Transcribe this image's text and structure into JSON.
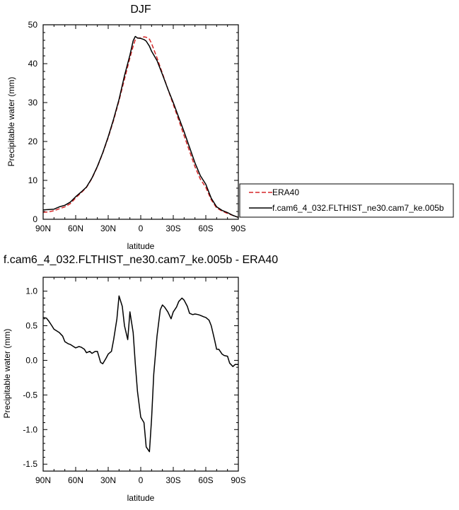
{
  "chart_data": [
    {
      "type": "line",
      "title": "DJF",
      "xlabel": "latitude",
      "ylabel": "Precipitable water (mm)",
      "xlim": [
        90,
        -90
      ],
      "ylim": [
        0,
        50
      ],
      "x_ticks": [
        {
          "value": 90,
          "label": "90N"
        },
        {
          "value": 60,
          "label": "60N"
        },
        {
          "value": 30,
          "label": "30N"
        },
        {
          "value": 0,
          "label": "0"
        },
        {
          "value": -30,
          "label": "30S"
        },
        {
          "value": -60,
          "label": "60S"
        },
        {
          "value": -90,
          "label": "90S"
        }
      ],
      "y_ticks": [
        {
          "value": 0,
          "label": "0"
        },
        {
          "value": 10,
          "label": "10"
        },
        {
          "value": 20,
          "label": "20"
        },
        {
          "value": 30,
          "label": "30"
        },
        {
          "value": 40,
          "label": "40"
        },
        {
          "value": 50,
          "label": "50"
        }
      ],
      "legend": "right",
      "grid": false,
      "series": [
        {
          "name": "ERA40",
          "color": "#d62728",
          "dash": "dashed",
          "x": [
            90,
            85,
            80,
            75,
            70,
            65,
            60,
            55,
            50,
            45,
            40,
            35,
            30,
            25,
            20,
            15,
            10,
            7,
            5,
            3,
            0,
            -3,
            -5,
            -8,
            -10,
            -15,
            -20,
            -25,
            -30,
            -35,
            -40,
            -45,
            -50,
            -55,
            -60,
            -65,
            -70,
            -75,
            -80,
            -85,
            -90
          ],
          "y": [
            1.8,
            1.9,
            2.2,
            2.7,
            3.2,
            4.0,
            5.5,
            6.8,
            8.2,
            10.5,
            13.5,
            17.0,
            21.0,
            25.5,
            30.5,
            36.0,
            41.5,
            44.5,
            46.2,
            46.6,
            46.6,
            46.9,
            46.8,
            46.3,
            45.2,
            41.5,
            37.5,
            33.5,
            29.5,
            25.5,
            21.5,
            17.5,
            13.5,
            10.3,
            8.2,
            5.0,
            2.9,
            2.1,
            1.5,
            1.0,
            0.5
          ]
        },
        {
          "name": "f.cam6_4_032.FLTHIST_ne30.cam7_ke.005b",
          "color": "#000000",
          "dash": "solid",
          "x": [
            90,
            85,
            80,
            75,
            70,
            65,
            60,
            55,
            50,
            45,
            40,
            35,
            30,
            25,
            20,
            15,
            10,
            7,
            5,
            3,
            0,
            -3,
            -5,
            -8,
            -10,
            -15,
            -20,
            -25,
            -30,
            -35,
            -40,
            -45,
            -50,
            -55,
            -60,
            -65,
            -70,
            -75,
            -80,
            -85,
            -90
          ],
          "y": [
            2.4,
            2.5,
            2.6,
            3.2,
            3.6,
            4.4,
            5.8,
            7.0,
            8.3,
            10.6,
            13.6,
            17.1,
            21.2,
            25.8,
            30.8,
            36.9,
            42.2,
            45.9,
            47.0,
            46.6,
            46.5,
            46.2,
            45.8,
            44.5,
            43.2,
            40.8,
            37.2,
            33.5,
            30.0,
            26.2,
            22.5,
            18.5,
            14.5,
            11.2,
            9.0,
            5.4,
            3.2,
            2.3,
            1.7,
            1.0,
            0.5
          ]
        }
      ]
    },
    {
      "type": "line",
      "title": "f.cam6_4_032.FLTHIST_ne30.cam7_ke.005b - ERA40",
      "xlabel": "latitude",
      "ylabel": "Precipitable water (mm)",
      "xlim": [
        90,
        -90
      ],
      "ylim": [
        -1.6,
        1.2
      ],
      "x_ticks": [
        {
          "value": 90,
          "label": "90N"
        },
        {
          "value": 60,
          "label": "60N"
        },
        {
          "value": 30,
          "label": "30N"
        },
        {
          "value": 0,
          "label": "0"
        },
        {
          "value": -30,
          "label": "30S"
        },
        {
          "value": -60,
          "label": "60S"
        },
        {
          "value": -90,
          "label": "90S"
        }
      ],
      "y_ticks": [
        {
          "value": 1.0,
          "label": "1.0"
        },
        {
          "value": 0.5,
          "label": "0.5"
        },
        {
          "value": 0.0,
          "label": "0.0"
        },
        {
          "value": -0.5,
          "label": "-0.5"
        },
        {
          "value": -1.0,
          "label": "-1.0"
        },
        {
          "value": -1.5,
          "label": "-1.5"
        }
      ],
      "grid": false,
      "series": [
        {
          "color": "#000000",
          "dash": "solid",
          "x": [
            90,
            87,
            85,
            82,
            80,
            77,
            75,
            72,
            70,
            67,
            65,
            62,
            60,
            57,
            55,
            52,
            50,
            47,
            45,
            42,
            40,
            37,
            35,
            32,
            30,
            27,
            25,
            22,
            20,
            17,
            15,
            12,
            10,
            7,
            5,
            3,
            0,
            -3,
            -5,
            -8,
            -10,
            -12,
            -15,
            -18,
            -20,
            -22,
            -25,
            -28,
            -30,
            -33,
            -35,
            -38,
            -40,
            -43,
            -45,
            -48,
            -50,
            -53,
            -55,
            -58,
            -60,
            -63,
            -65,
            -68,
            -70,
            -72,
            -75,
            -77,
            -80,
            -82,
            -85,
            -87,
            -90
          ],
          "y": [
            0.62,
            0.61,
            0.57,
            0.5,
            0.45,
            0.42,
            0.4,
            0.35,
            0.27,
            0.24,
            0.23,
            0.2,
            0.18,
            0.2,
            0.19,
            0.16,
            0.11,
            0.13,
            0.1,
            0.13,
            0.13,
            -0.03,
            -0.05,
            0.03,
            0.09,
            0.13,
            0.3,
            0.6,
            0.93,
            0.78,
            0.5,
            0.3,
            0.7,
            0.4,
            -0.05,
            -0.45,
            -0.82,
            -0.9,
            -1.25,
            -1.32,
            -0.85,
            -0.2,
            0.35,
            0.73,
            0.8,
            0.77,
            0.7,
            0.6,
            0.7,
            0.77,
            0.85,
            0.9,
            0.87,
            0.78,
            0.68,
            0.66,
            0.67,
            0.66,
            0.65,
            0.63,
            0.62,
            0.58,
            0.5,
            0.3,
            0.16,
            0.16,
            0.09,
            0.07,
            0.06,
            -0.04,
            -0.09,
            -0.06,
            -0.06
          ]
        }
      ]
    }
  ]
}
